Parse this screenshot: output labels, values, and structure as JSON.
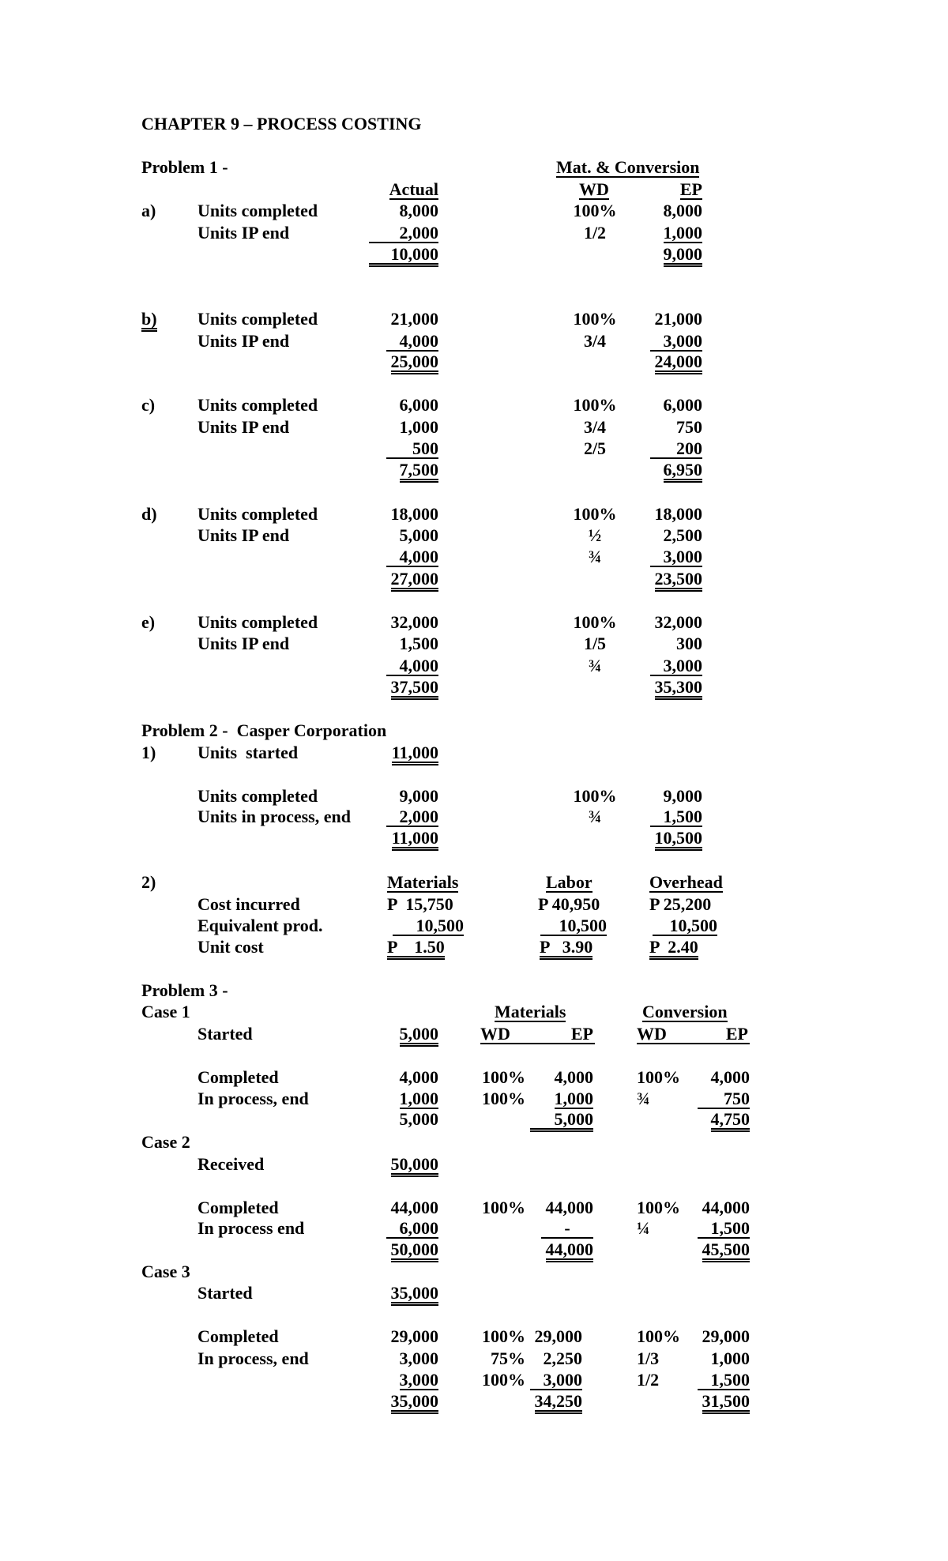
{
  "title": "CHAPTER 9 – PROCESS COSTING",
  "p1": {
    "heading": "Problem 1 -",
    "group_header": "Mat. & Conversion",
    "col_actual": "Actual",
    "col_wd": "WD",
    "col_ep": "EP",
    "a": {
      "letter": "a)",
      "l1": "Units completed",
      "l2": "Units IP end",
      "act": [
        "8,000",
        "2,000",
        "10,000"
      ],
      "wd": [
        "100%",
        "1/2"
      ],
      "ep": [
        "8,000",
        "1,000",
        "9,000"
      ]
    },
    "b": {
      "letter": "b)",
      "l1": "Units completed",
      "l2": "Units IP end",
      "act": [
        "21,000",
        "4,000",
        "25,000"
      ],
      "wd": [
        "100%",
        "3/4"
      ],
      "ep": [
        "21,000",
        "3,000",
        "24,000"
      ]
    },
    "c": {
      "letter": "c)",
      "l1": "Units completed",
      "l2": "Units IP end",
      "act": [
        "6,000",
        "1,000",
        "500",
        "7,500"
      ],
      "wd": [
        "100%",
        "3/4",
        "2/5"
      ],
      "ep": [
        "6,000",
        "750",
        "200",
        "6,950"
      ]
    },
    "d": {
      "letter": "d)",
      "l1": "Units completed",
      "l2": "Units IP end",
      "act": [
        "18,000",
        "5,000",
        "4,000",
        "27,000"
      ],
      "wd": [
        "100%",
        "½",
        "¾"
      ],
      "ep": [
        "18,000",
        "2,500",
        "3,000",
        "23,500"
      ]
    },
    "e": {
      "letter": "e)",
      "l1": "Units completed",
      "l2": "Units IP end",
      "act": [
        "32,000",
        "1,500",
        "4,000",
        "37,500"
      ],
      "wd": [
        "100%",
        "1/5",
        "¾"
      ],
      "ep": [
        "32,000",
        "300",
        "3,000",
        "35,300"
      ]
    }
  },
  "p2": {
    "heading": "Problem 2 -  Casper Corporation",
    "s1": {
      "letter": "1)",
      "started_label": "Units  started",
      "started": "11,000",
      "l1": "Units completed",
      "l2": "Units in process, end",
      "act": [
        "9,000",
        "2,000",
        "11,000"
      ],
      "wd": [
        "100%",
        "¾"
      ],
      "ep": [
        "9,000",
        "1,500",
        "10,500"
      ]
    },
    "s2": {
      "letter": "2)",
      "headers": [
        "Materials",
        "Labor",
        "Overhead"
      ],
      "rows": [
        "Cost incurred",
        "Equivalent prod.",
        "Unit cost"
      ],
      "materials": [
        "P  15,750",
        "10,500",
        "P    1.50"
      ],
      "labor": [
        "P 40,950",
        "10,500",
        "P   3.90"
      ],
      "overhead": [
        "P 25,200",
        "10,500",
        "P  2.40"
      ]
    }
  },
  "p3": {
    "heading": "Problem 3 -",
    "materials_header": "Materials",
    "conversion_header": "Conversion",
    "wd": "WD",
    "ep": "EP",
    "case1": {
      "label": "Case 1",
      "start_label": "Started",
      "start": "5,000",
      "l1": "Completed",
      "l2": "In process, end",
      "units": [
        "4,000",
        "1,000",
        "5,000"
      ],
      "mwd": [
        "100%",
        "100%"
      ],
      "mep": [
        "4,000",
        "1,000",
        "5,000"
      ],
      "cwd": [
        "100%",
        "¾"
      ],
      "cep": [
        "4,000",
        "750",
        "4,750"
      ]
    },
    "case2": {
      "label": "Case 2",
      "start_label": "Received",
      "start": "50,000",
      "l1": "Completed",
      "l2": "In process end",
      "units": [
        "44,000",
        "6,000",
        "50,000"
      ],
      "mwd": [
        "100%"
      ],
      "mep": [
        "44,000",
        "-",
        "44,000"
      ],
      "cwd": [
        "100%",
        "¼"
      ],
      "cep": [
        "44,000",
        "1,500",
        "45,500"
      ]
    },
    "case3": {
      "label": "Case 3",
      "start_label": "Started",
      "start": "35,000",
      "l1": "Completed",
      "l2": "In process, end",
      "units": [
        "29,000",
        "3,000",
        "3,000",
        "35,000"
      ],
      "mwd": [
        "100%",
        "75%",
        "100%"
      ],
      "mep": [
        "29,000",
        "2,250",
        "3,000",
        "34,250"
      ],
      "cwd": [
        "100%",
        "1/3",
        "1/2"
      ],
      "cep": [
        "29,000",
        "1,000",
        "1,500",
        "31,500"
      ]
    }
  }
}
